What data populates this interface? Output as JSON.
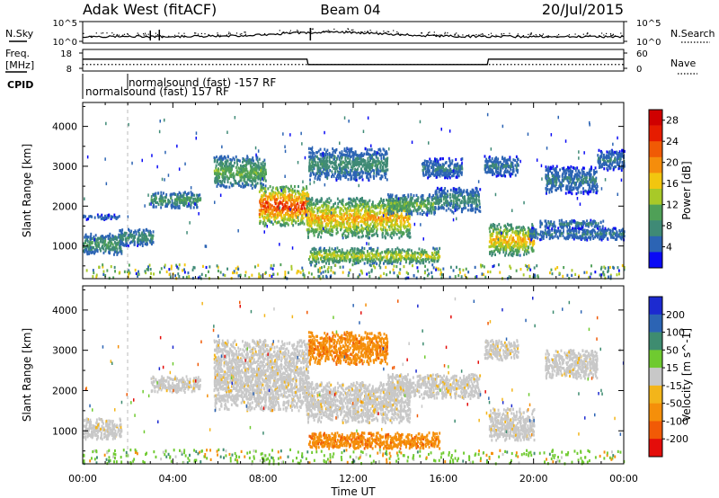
{
  "header": {
    "radar": "Adak West (fitACF)",
    "beam": "Beam 04",
    "date": "20/Jul/2015"
  },
  "noise_panel": {
    "left_label": "N.Sky",
    "right_label": "N.Search",
    "left_ticks": [
      "10^5",
      "10^0"
    ],
    "right_ticks": [
      "10^5",
      "10^0"
    ]
  },
  "freq_panel": {
    "left_label_line1": "Freq.",
    "left_label_line2": "[MHz]",
    "right_label": "Nave",
    "left_ticks": [
      "18",
      "8"
    ],
    "right_ticks": [
      "60",
      "0"
    ],
    "freq_values_mhz": [
      {
        "t": 0.0,
        "v": 14.0
      },
      {
        "t": 9.95,
        "v": 14.0
      },
      {
        "t": 10.0,
        "v": 10.5
      },
      {
        "t": 17.95,
        "v": 10.5
      },
      {
        "t": 18.0,
        "v": 14.0
      },
      {
        "t": 24.0,
        "v": 14.0
      }
    ],
    "nave_level": 15
  },
  "cpid_panel": {
    "label": "CPID",
    "entries": [
      {
        "text": "normalsound (fast) 157 RF",
        "start_hr": 0.0
      },
      {
        "text": "normalsound (fast) -157 RF",
        "start_hr": 2.0
      }
    ]
  },
  "colors": {
    "power": [
      "#0a0af5",
      "#2c64b4",
      "#3f8a76",
      "#4fa057",
      "#a8c928",
      "#f2c60f",
      "#f58d0c",
      "#f05a05",
      "#e61c00",
      "#d00000"
    ],
    "velocity": [
      "#e40d0a",
      "#f15a06",
      "#f58f0a",
      "#f3b51a",
      "#c8c8c8",
      "#6fca30",
      "#3e8c70",
      "#2c64b4",
      "#1c2ad0"
    ],
    "ground_scatter": "#c8c8c8"
  },
  "chart_data": [
    {
      "type": "heatmap",
      "name": "power",
      "xlabel": "",
      "ylabel": "Slant Range [km]",
      "xlim": [
        0,
        24
      ],
      "ylim": [
        180,
        4600
      ],
      "yticks": [
        1000,
        2000,
        3000,
        4000
      ],
      "colorbar": {
        "label": "Power [dB]",
        "ticks": [
          "4",
          "8",
          "12",
          "16",
          "20",
          "24",
          "28"
        ],
        "range": [
          0,
          30
        ]
      },
      "regions": [
        {
          "t0": 0.0,
          "t1": 1.7,
          "r0": 780,
          "r1": 1300,
          "peak": 12
        },
        {
          "t0": 0.0,
          "t1": 1.6,
          "r0": 1650,
          "r1": 1780,
          "peak": 6
        },
        {
          "t0": 1.6,
          "t1": 3.1,
          "r0": 1000,
          "r1": 1420,
          "peak": 10
        },
        {
          "t0": 3.0,
          "t1": 5.2,
          "r0": 1950,
          "r1": 2350,
          "peak": 12
        },
        {
          "t0": 5.8,
          "t1": 8.1,
          "r0": 2450,
          "r1": 3250,
          "peak": 14
        },
        {
          "t0": 7.8,
          "t1": 10.0,
          "r0": 1500,
          "r1": 2500,
          "peak": 29
        },
        {
          "t0": 9.9,
          "t1": 14.5,
          "r0": 1200,
          "r1": 2200,
          "peak": 22
        },
        {
          "t0": 10.0,
          "t1": 15.8,
          "r0": 550,
          "r1": 950,
          "peak": 18
        },
        {
          "t0": 10.0,
          "t1": 13.5,
          "r0": 2650,
          "r1": 3450,
          "peak": 10
        },
        {
          "t0": 13.5,
          "t1": 15.6,
          "r0": 1780,
          "r1": 2300,
          "peak": 14
        },
        {
          "t0": 15.6,
          "t1": 17.6,
          "r0": 1850,
          "r1": 2450,
          "peak": 10
        },
        {
          "t0": 15.0,
          "t1": 16.8,
          "r0": 2700,
          "r1": 3200,
          "peak": 8
        },
        {
          "t0": 18.0,
          "t1": 20.0,
          "r0": 750,
          "r1": 1550,
          "peak": 22
        },
        {
          "t0": 19.8,
          "t1": 24.0,
          "r0": 1150,
          "r1": 1450,
          "peak": 8
        },
        {
          "t0": 20.2,
          "t1": 23.1,
          "r0": 1450,
          "r1": 1650,
          "peak": 8
        },
        {
          "t0": 17.8,
          "t1": 19.3,
          "r0": 2750,
          "r1": 3250,
          "peak": 8
        },
        {
          "t0": 20.5,
          "t1": 22.8,
          "r0": 2300,
          "r1": 3000,
          "peak": 8
        },
        {
          "t0": 22.8,
          "t1": 24.0,
          "r0": 2900,
          "r1": 3400,
          "peak": 8
        }
      ]
    },
    {
      "type": "heatmap",
      "name": "velocity",
      "xlabel": "Time UT",
      "ylabel": "Slant Range [km]",
      "xlim": [
        0,
        24
      ],
      "ylim": [
        180,
        4600
      ],
      "yticks": [
        1000,
        2000,
        3000,
        4000
      ],
      "xticks": [
        "00:00",
        "04:00",
        "08:00",
        "12:00",
        "16:00",
        "20:00",
        "00:00"
      ],
      "colorbar": {
        "label": "Velocity [m s^-1]",
        "ticks": [
          "200",
          "100",
          "50",
          "15",
          "-15",
          "-50",
          "-100",
          "-200"
        ]
      },
      "regions": [
        {
          "t0": 0.0,
          "t1": 1.7,
          "r0": 780,
          "r1": 1300,
          "v": "gs"
        },
        {
          "t0": 3.0,
          "t1": 5.2,
          "r0": 1950,
          "r1": 2350,
          "v": "gs"
        },
        {
          "t0": 5.8,
          "t1": 10.0,
          "r0": 1500,
          "r1": 3250,
          "v": "gs"
        },
        {
          "t0": 9.9,
          "t1": 14.5,
          "r0": 1200,
          "r1": 2200,
          "v": "gs"
        },
        {
          "t0": 10.0,
          "t1": 15.8,
          "r0": 550,
          "r1": 950,
          "v": -30
        },
        {
          "t0": 10.0,
          "t1": 13.5,
          "r0": 2650,
          "r1": 3450,
          "v": -40
        },
        {
          "t0": 13.5,
          "t1": 17.6,
          "r0": 1800,
          "r1": 2400,
          "v": "gs"
        },
        {
          "t0": 18.0,
          "t1": 20.0,
          "r0": 750,
          "r1": 1550,
          "v": "gs"
        },
        {
          "t0": 17.8,
          "t1": 19.3,
          "r0": 2750,
          "r1": 3250,
          "v": "gs"
        },
        {
          "t0": 20.5,
          "t1": 22.8,
          "r0": 2300,
          "r1": 3000,
          "v": "gs"
        }
      ]
    }
  ]
}
